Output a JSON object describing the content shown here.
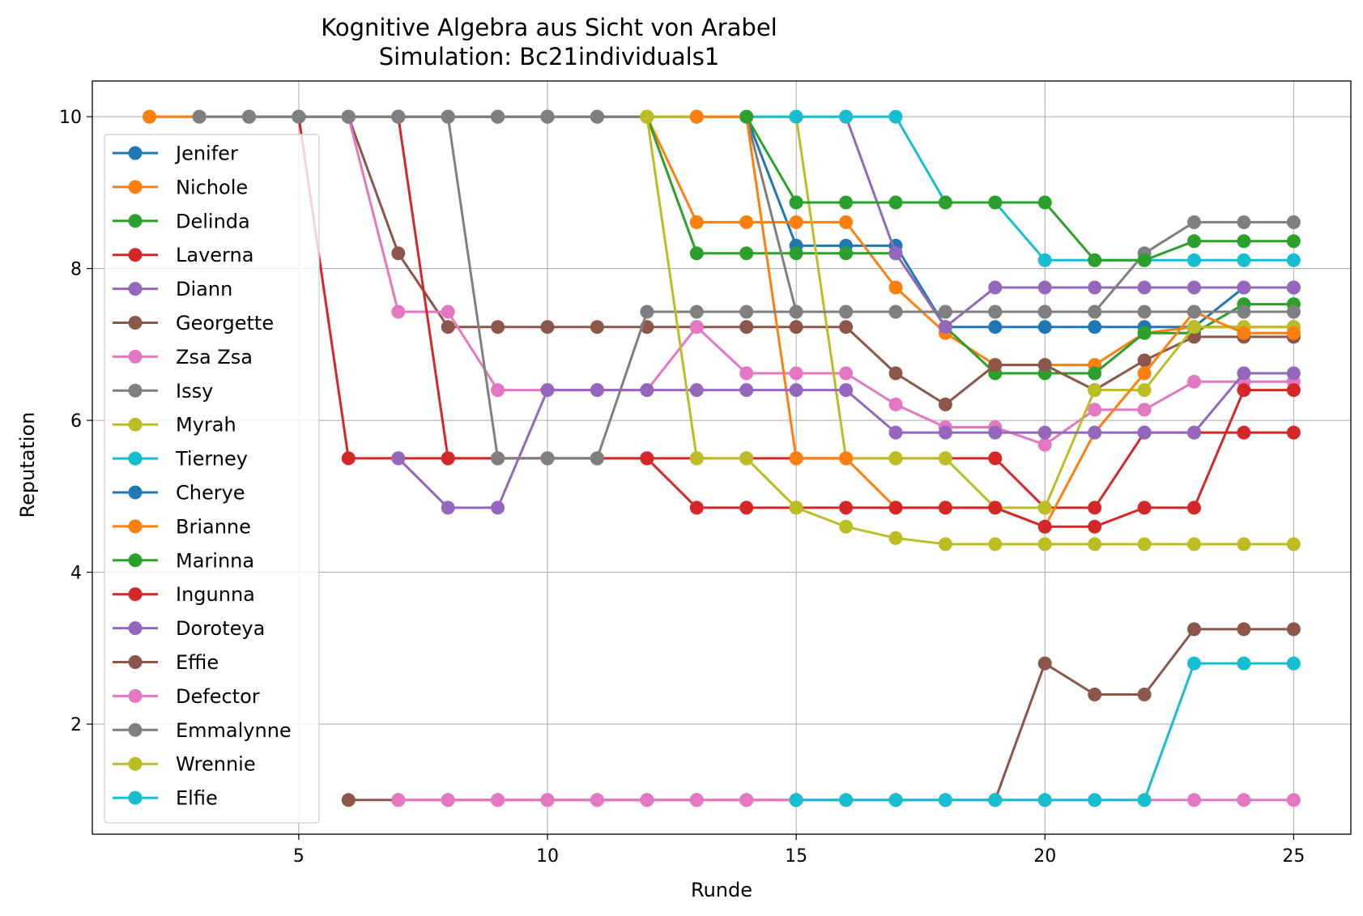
{
  "chart_data": {
    "type": "line",
    "title": "Kognitive Algebra aus Sicht von Arabel",
    "subtitle": "Simulation: Bc21individuals1",
    "xlabel": "Runde",
    "ylabel": "Reputation",
    "xlim": [
      0.85,
      26.15
    ],
    "ylim": [
      0.55,
      10.47
    ],
    "xticks": [
      5,
      10,
      15,
      20,
      25
    ],
    "yticks": [
      2,
      4,
      6,
      8,
      10
    ],
    "grid": true,
    "legend_position": "upper-left",
    "series": [
      {
        "name": "Jenifer",
        "color": "#1f77b4",
        "x": [
          2,
          3,
          4,
          5,
          6,
          7,
          8,
          9,
          10,
          11,
          12,
          13,
          14,
          15,
          16,
          17,
          18,
          19,
          20,
          21,
          22,
          23,
          24,
          25
        ],
        "y": [
          10,
          10,
          10,
          10,
          10,
          10,
          10,
          10,
          10,
          10,
          10,
          10,
          10,
          8.3,
          8.3,
          8.3,
          7.23,
          7.23,
          7.23,
          7.23,
          7.23,
          7.23,
          7.75,
          7.75
        ]
      },
      {
        "name": "Nichole",
        "color": "#ff7f0e",
        "x": [
          2,
          3,
          4,
          5,
          6,
          7,
          8,
          9,
          10,
          11,
          12,
          13,
          14,
          15,
          16,
          17,
          18,
          19,
          20,
          21,
          22,
          23,
          24,
          25
        ],
        "y": [
          10,
          10,
          10,
          10,
          10,
          10,
          10,
          10,
          10,
          10,
          10,
          8.61,
          8.61,
          8.61,
          8.61,
          7.75,
          7.15,
          6.73,
          6.73,
          6.73,
          7.15,
          7.23,
          7.23,
          7.23
        ]
      },
      {
        "name": "Delinda",
        "color": "#2ca02c",
        "x": [
          4,
          5,
          6,
          7,
          8,
          9,
          10,
          11,
          12,
          13,
          14,
          15,
          16,
          17,
          18,
          19,
          20,
          21,
          22,
          23,
          24,
          25
        ],
        "y": [
          10,
          10,
          10,
          10,
          10,
          10,
          10,
          10,
          10,
          8.2,
          8.2,
          8.2,
          8.2,
          8.2,
          7.23,
          6.62,
          6.62,
          6.62,
          7.15,
          7.15,
          7.53,
          7.53
        ]
      },
      {
        "name": "Laverna",
        "color": "#d62728",
        "x": [
          5,
          6,
          7,
          8,
          9,
          10,
          11,
          12,
          13,
          14,
          15,
          16,
          17,
          18,
          19,
          20,
          21,
          22,
          23,
          24,
          25
        ],
        "y": [
          10,
          5.5,
          5.5,
          5.5,
          5.5,
          5.5,
          5.5,
          5.5,
          5.5,
          5.5,
          5.5,
          5.5,
          5.5,
          5.5,
          5.5,
          4.85,
          4.85,
          5.84,
          5.84,
          5.84,
          5.84
        ]
      },
      {
        "name": "Diann",
        "color": "#9467bd",
        "x": [
          5,
          6,
          7,
          8,
          9,
          10,
          11,
          12,
          13,
          14,
          15,
          16,
          17,
          18,
          19,
          20,
          21,
          22,
          23,
          24,
          25
        ],
        "y": [
          10,
          10,
          10,
          10,
          10,
          10,
          10,
          10,
          10,
          10,
          10,
          10,
          8.2,
          7.23,
          7.75,
          7.75,
          7.75,
          7.75,
          7.75,
          7.75,
          7.75
        ]
      },
      {
        "name": "Georgette",
        "color": "#8c564b",
        "x": [
          6,
          7,
          8,
          9,
          10,
          11,
          12,
          13,
          14,
          15,
          16,
          17,
          18,
          19,
          20,
          21,
          22,
          23,
          24,
          25
        ],
        "y": [
          10,
          8.2,
          7.23,
          7.23,
          7.23,
          7.23,
          7.23,
          7.23,
          7.23,
          7.23,
          7.23,
          6.62,
          6.21,
          6.73,
          6.73,
          6.4,
          6.79,
          7.1,
          7.1,
          7.1
        ]
      },
      {
        "name": "Zsa Zsa",
        "color": "#e377c2",
        "x": [
          6,
          7,
          8,
          9,
          10,
          11,
          12,
          13,
          14,
          15,
          16,
          17,
          18,
          19,
          20,
          21,
          22,
          23,
          24,
          25
        ],
        "y": [
          10,
          7.43,
          7.43,
          6.4,
          6.4,
          6.4,
          6.4,
          7.23,
          6.62,
          6.62,
          6.62,
          6.21,
          5.91,
          5.91,
          5.68,
          6.14,
          6.14,
          6.51,
          6.51,
          6.51
        ]
      },
      {
        "name": "Issy",
        "color": "#7f7f7f",
        "x": [
          8,
          9,
          10,
          11,
          12,
          13,
          14,
          15,
          16,
          17,
          18,
          19,
          20,
          21,
          22,
          23,
          24,
          25
        ],
        "y": [
          10,
          10,
          10,
          10,
          10,
          10,
          10,
          7.43,
          7.43,
          7.43,
          7.43,
          7.43,
          7.43,
          7.43,
          8.2,
          8.61,
          8.61,
          8.61
        ]
      },
      {
        "name": "Myrah",
        "color": "#bcbd22",
        "x": [
          12,
          13,
          14,
          15,
          16,
          17,
          18,
          19,
          20,
          21,
          22,
          23,
          24,
          25
        ],
        "y": [
          10,
          10,
          10,
          10,
          5.5,
          5.5,
          5.5,
          4.85,
          4.85,
          6.4,
          6.4,
          7.23,
          7.23,
          7.23
        ]
      },
      {
        "name": "Tierney",
        "color": "#17becf",
        "x": [
          14,
          15,
          16,
          17,
          18,
          19,
          20,
          21,
          22,
          23,
          24,
          25
        ],
        "y": [
          10,
          10,
          10,
          10,
          8.87,
          8.87,
          8.11,
          8.11,
          8.11,
          8.11,
          8.11,
          8.11
        ]
      },
      {
        "name": "Cherye",
        "color": "#1f77b4",
        "x": [],
        "y": []
      },
      {
        "name": "Brianne",
        "color": "#ff7f0e",
        "x": [
          13,
          14,
          15,
          16,
          17,
          18,
          19,
          20,
          21,
          22,
          23,
          24,
          25
        ],
        "y": [
          10,
          10,
          5.5,
          5.5,
          4.85,
          4.85,
          4.85,
          4.6,
          5.84,
          6.62,
          7.43,
          7.15,
          7.15
        ]
      },
      {
        "name": "Marinna",
        "color": "#2ca02c",
        "x": [
          14,
          15,
          16,
          17,
          18,
          19,
          20,
          21,
          22,
          23,
          24,
          25
        ],
        "y": [
          10,
          8.87,
          8.87,
          8.87,
          8.87,
          8.87,
          8.87,
          8.11,
          8.11,
          8.36,
          8.36,
          8.36
        ]
      },
      {
        "name": "Ingunna",
        "color": "#d62728",
        "x": [
          7,
          8,
          9,
          10,
          11,
          12,
          13,
          14,
          15,
          16,
          17,
          18,
          19,
          20,
          21,
          22,
          23,
          24,
          25
        ],
        "y": [
          10,
          5.5,
          5.5,
          5.5,
          5.5,
          5.5,
          4.85,
          4.85,
          4.85,
          4.85,
          4.85,
          4.85,
          4.85,
          4.6,
          4.6,
          4.85,
          4.85,
          6.4,
          6.4
        ]
      },
      {
        "name": "Doroteya",
        "color": "#9467bd",
        "x": [
          7,
          8,
          9,
          10,
          11,
          12,
          13,
          14,
          15,
          16,
          17,
          18,
          19,
          20,
          21,
          22,
          23,
          24,
          25
        ],
        "y": [
          5.5,
          4.85,
          4.85,
          6.4,
          6.4,
          6.4,
          6.4,
          6.4,
          6.4,
          6.4,
          5.84,
          5.84,
          5.84,
          5.84,
          5.84,
          5.84,
          5.84,
          6.62,
          6.62
        ]
      },
      {
        "name": "Effie",
        "color": "#8c564b",
        "x": [
          6,
          7,
          8,
          9,
          10,
          11,
          12,
          13,
          14,
          15,
          16,
          17,
          18,
          19,
          20,
          21,
          22,
          23,
          24,
          25
        ],
        "y": [
          1,
          1,
          1,
          1,
          1,
          1,
          1,
          1,
          1,
          1,
          1,
          1,
          1,
          1,
          2.8,
          2.39,
          2.39,
          3.25,
          3.25,
          3.25
        ]
      },
      {
        "name": "Defector",
        "color": "#e377c2",
        "x": [
          7,
          8,
          9,
          10,
          11,
          12,
          13,
          14,
          15,
          16,
          17,
          18,
          19,
          20,
          21,
          22,
          23,
          24,
          25
        ],
        "y": [
          1,
          1,
          1,
          1,
          1,
          1,
          1,
          1,
          1,
          1,
          1,
          1,
          1,
          1,
          1,
          1,
          1,
          1,
          1
        ]
      },
      {
        "name": "Emmalynne",
        "color": "#7f7f7f",
        "x": [
          3,
          4,
          5,
          6,
          7,
          8,
          9,
          10,
          11,
          12,
          13,
          14,
          15,
          16,
          17,
          18,
          19,
          20,
          21,
          22,
          23,
          24,
          25
        ],
        "y": [
          10,
          10,
          10,
          10,
          10,
          10,
          5.5,
          5.5,
          5.5,
          7.43,
          7.43,
          7.43,
          7.43,
          7.43,
          7.43,
          7.43,
          7.43,
          7.43,
          7.43,
          7.43,
          7.43,
          7.43,
          7.43
        ]
      },
      {
        "name": "Wrennie",
        "color": "#bcbd22",
        "x": [
          12,
          13,
          14,
          15,
          16,
          17,
          18,
          19,
          20,
          21,
          22,
          23,
          24,
          25
        ],
        "y": [
          10,
          5.5,
          5.5,
          4.85,
          4.6,
          4.45,
          4.37,
          4.37,
          4.37,
          4.37,
          4.37,
          4.37,
          4.37,
          4.37
        ]
      },
      {
        "name": "Elfie",
        "color": "#17becf",
        "x": [
          15,
          16,
          17,
          18,
          19,
          20,
          21,
          22,
          23,
          24,
          25
        ],
        "y": [
          1,
          1,
          1,
          1,
          1,
          1,
          1,
          1,
          2.8,
          2.8,
          2.8
        ]
      }
    ]
  }
}
